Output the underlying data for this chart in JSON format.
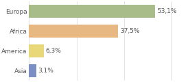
{
  "categories": [
    "Europa",
    "Africa",
    "America",
    "Asia"
  ],
  "values": [
    53.1,
    37.5,
    6.3,
    3.1
  ],
  "labels": [
    "53,1%",
    "37,5%",
    "6,3%",
    "3,1%"
  ],
  "bar_colors": [
    "#a8bc8a",
    "#e8b882",
    "#e8d87a",
    "#7a8fc4"
  ],
  "background_color": "#ffffff",
  "grid_color": "#dddddd",
  "xlim": [
    0,
    68
  ],
  "label_fontsize": 6.5,
  "category_fontsize": 6.5,
  "bar_height": 0.65,
  "figsize": [
    2.8,
    1.2
  ],
  "dpi": 100
}
